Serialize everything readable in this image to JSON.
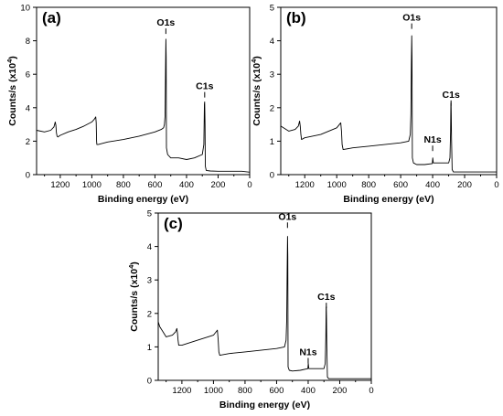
{
  "chart_data": [
    {
      "type": "line",
      "panel_label": "(a)",
      "xlabel": "Binding energy (eV)",
      "ylabel": "Counts/s (x10^4)",
      "xlim": [
        1350,
        0
      ],
      "ylim": [
        0,
        10
      ],
      "x_ticks": [
        "1200",
        "1000",
        "800",
        "600",
        "400",
        "200",
        "0"
      ],
      "y_ticks": [
        "0",
        "2",
        "4",
        "6",
        "8",
        "10"
      ],
      "annotations": [
        {
          "text": "O1s",
          "x": 531,
          "y": 8.3
        },
        {
          "text": "C1s",
          "x": 285,
          "y": 4.5
        }
      ],
      "series": [
        {
          "x": [
            1350,
            1300,
            1260,
            1240,
            1232,
            1228,
            1224,
            1220,
            1215,
            1200,
            1150,
            1100,
            1050,
            1000,
            985,
            975,
            972,
            970,
            968,
            960,
            900,
            800,
            700,
            600,
            560,
            545,
            540,
            536,
            533,
            531,
            529,
            527,
            520,
            500,
            450,
            400,
            350,
            300,
            290,
            287,
            285,
            283,
            281,
            275,
            250,
            200,
            150,
            100,
            50,
            0
          ],
          "y": [
            2.65,
            2.55,
            2.65,
            2.85,
            3.15,
            2.95,
            2.5,
            2.3,
            2.25,
            2.35,
            2.55,
            2.7,
            2.9,
            3.15,
            3.3,
            3.45,
            3.1,
            2.0,
            1.8,
            1.8,
            1.95,
            2.1,
            2.3,
            2.55,
            2.7,
            2.8,
            3.0,
            3.5,
            6.2,
            8.1,
            7.0,
            1.6,
            1.2,
            1.0,
            1.0,
            0.9,
            1.0,
            1.2,
            1.8,
            4.2,
            4.35,
            3.0,
            0.5,
            0.25,
            0.22,
            0.2,
            0.2,
            0.2,
            0.2,
            0.15
          ]
        }
      ]
    },
    {
      "type": "line",
      "panel_label": "(b)",
      "xlabel": "Binding energy (eV)",
      "ylabel": "Counts/s (x10^4)",
      "xlim": [
        1350,
        0
      ],
      "ylim": [
        0,
        5
      ],
      "x_ticks": [
        "1200",
        "1000",
        "800",
        "600",
        "400",
        "200",
        "0"
      ],
      "y_ticks": [
        "0",
        "1",
        "2",
        "3",
        "4",
        "5"
      ],
      "annotations": [
        {
          "text": "O1s",
          "x": 531,
          "y": 4.3
        },
        {
          "text": "N1s",
          "x": 400,
          "y": 0.65
        },
        {
          "text": "C1s",
          "x": 285,
          "y": 2.0
        }
      ],
      "series": [
        {
          "x": [
            1350,
            1300,
            1260,
            1240,
            1232,
            1228,
            1224,
            1220,
            1200,
            1100,
            1000,
            975,
            970,
            966,
            960,
            900,
            800,
            700,
            600,
            550,
            540,
            536,
            533,
            531,
            529,
            527,
            520,
            500,
            450,
            402,
            399,
            396,
            350,
            300,
            292,
            288,
            286,
            285,
            284,
            282,
            278,
            270,
            250,
            200,
            150,
            100,
            50,
            0
          ],
          "y": [
            1.45,
            1.3,
            1.35,
            1.45,
            1.6,
            1.45,
            1.2,
            1.05,
            1.1,
            1.2,
            1.4,
            1.55,
            1.3,
            0.9,
            0.75,
            0.8,
            0.85,
            0.9,
            0.95,
            1.0,
            1.2,
            1.8,
            3.3,
            4.15,
            3.5,
            0.5,
            0.35,
            0.3,
            0.3,
            0.33,
            0.5,
            0.35,
            0.35,
            0.35,
            0.5,
            1.3,
            2.1,
            2.15,
            1.8,
            1.1,
            0.15,
            0.08,
            0.08,
            0.08,
            0.08,
            0.08,
            0.08,
            0.08
          ]
        }
      ]
    },
    {
      "type": "line",
      "panel_label": "(c)",
      "xlabel": "Binding energy (eV)",
      "ylabel": "Counts/s (x10^4)",
      "xlim": [
        1350,
        0
      ],
      "ylim": [
        0,
        5
      ],
      "x_ticks": [
        "1200",
        "1000",
        "800",
        "600",
        "400",
        "200",
        "0"
      ],
      "y_ticks": [
        "0",
        "1",
        "2",
        "3",
        "4",
        "5"
      ],
      "annotations": [
        {
          "text": "O1s",
          "x": 531,
          "y": 4.5
        },
        {
          "text": "N1s",
          "x": 400,
          "y": 0.45
        },
        {
          "text": "C1s",
          "x": 285,
          "y": 2.1
        }
      ],
      "series": [
        {
          "x": [
            1350,
            1340,
            1320,
            1300,
            1260,
            1240,
            1232,
            1228,
            1224,
            1220,
            1200,
            1100,
            1000,
            975,
            970,
            966,
            960,
            900,
            800,
            700,
            600,
            550,
            540,
            536,
            533,
            531,
            529,
            527,
            520,
            500,
            450,
            402,
            399,
            396,
            350,
            300,
            292,
            288,
            286,
            285,
            284,
            282,
            278,
            270,
            250,
            200,
            150,
            100,
            50,
            0
          ],
          "y": [
            1.75,
            1.6,
            1.45,
            1.3,
            1.35,
            1.45,
            1.55,
            1.4,
            1.2,
            1.05,
            1.05,
            1.2,
            1.35,
            1.5,
            1.2,
            0.85,
            0.75,
            0.8,
            0.85,
            0.9,
            0.95,
            1.0,
            1.2,
            1.8,
            3.3,
            4.3,
            3.7,
            0.4,
            0.3,
            0.28,
            0.3,
            0.35,
            0.5,
            0.35,
            0.35,
            0.35,
            0.5,
            1.3,
            2.15,
            2.2,
            1.9,
            1.1,
            0.1,
            0.05,
            0.05,
            0.05,
            0.05,
            0.05,
            0.05,
            0.05
          ]
        }
      ]
    }
  ]
}
